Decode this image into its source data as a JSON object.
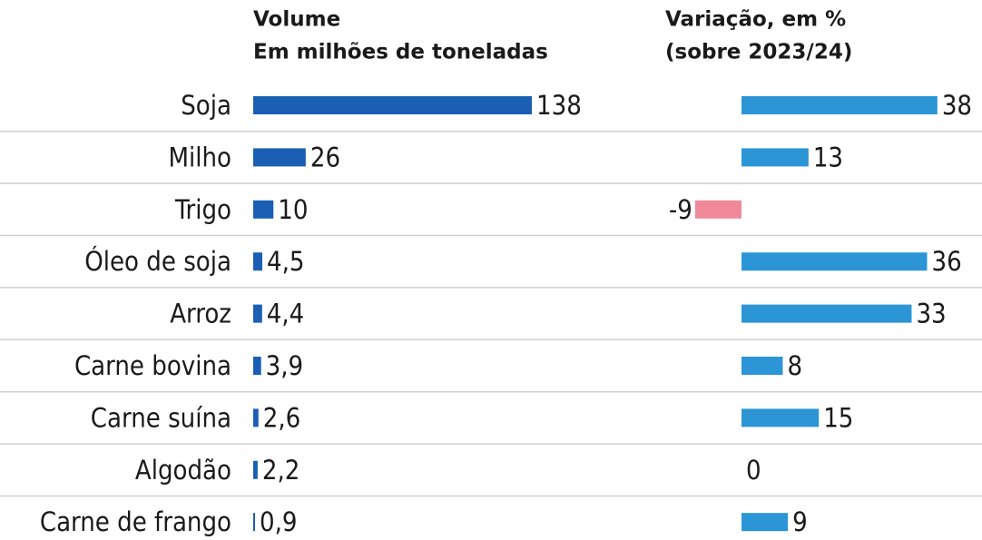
{
  "chart_data": [
    {
      "type": "bar",
      "orientation": "horizontal",
      "title": "Volume",
      "subtitle": "Em milhões de toneladas",
      "categories": [
        "Soja",
        "Milho",
        "Trigo",
        "Óleo de soja",
        "Arroz",
        "Carne bovina",
        "Carne suína",
        "Algodão",
        "Carne de frango"
      ],
      "values": [
        138,
        26,
        10,
        4.5,
        4.4,
        3.9,
        2.6,
        2.2,
        0.9
      ],
      "value_labels": [
        "138",
        "26",
        "10",
        "4,5",
        "4,4",
        "3,9",
        "2,6",
        "2,2",
        "0,9"
      ],
      "color": "#1a5fb4"
    },
    {
      "type": "bar",
      "orientation": "horizontal",
      "title": "Variação, em %",
      "subtitle": "(sobre 2023/24)",
      "values": [
        38,
        13,
        -9,
        36,
        33,
        8,
        15,
        0,
        9
      ],
      "color": "#2b95d6",
      "negative_color": "#f08a9a"
    }
  ]
}
